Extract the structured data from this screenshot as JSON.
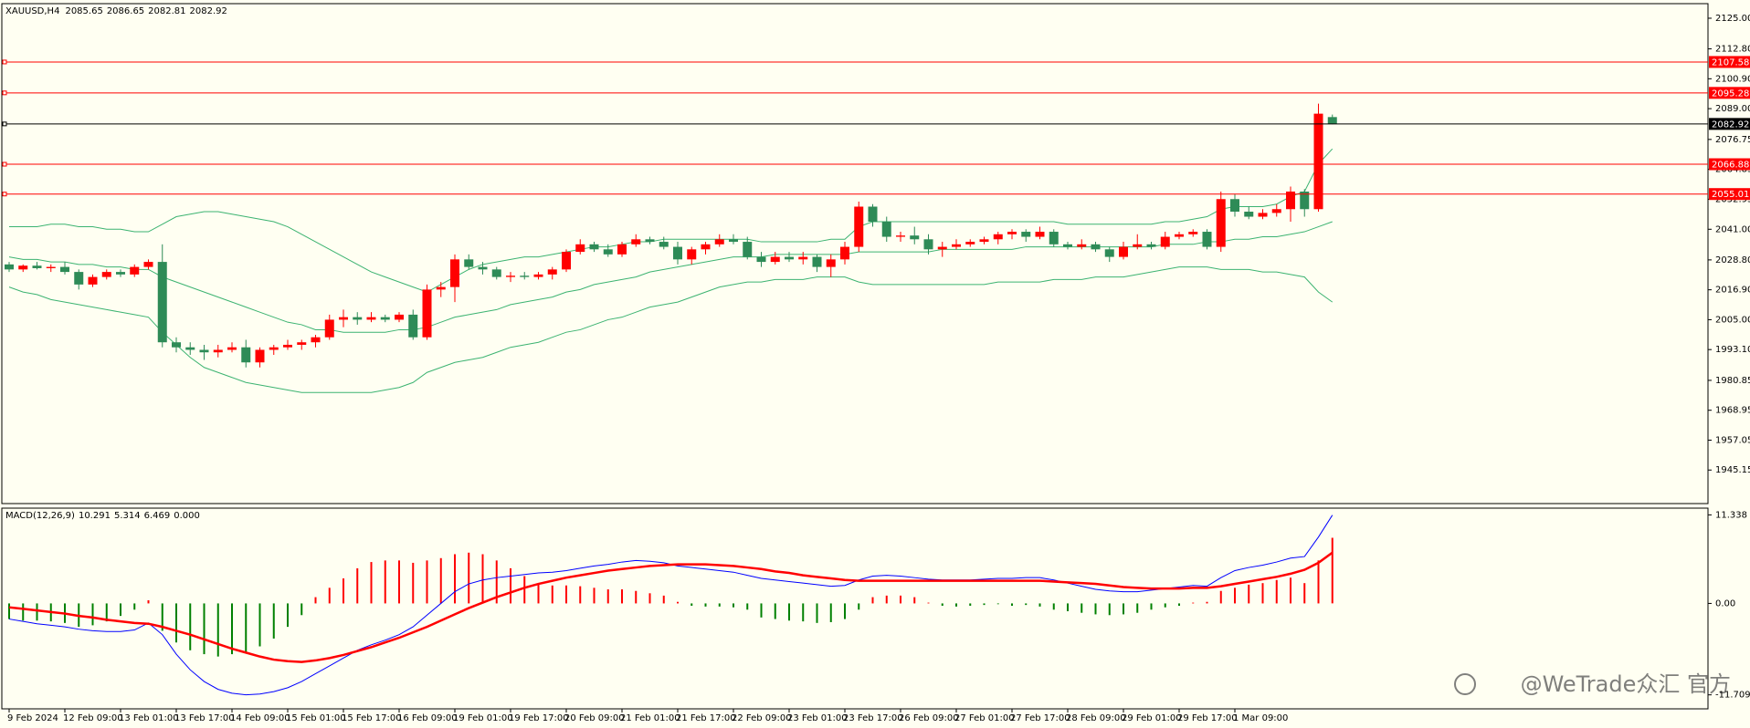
{
  "chart_data": [
    {
      "type": "candlestick",
      "title": "XAUUSD,H4",
      "readings": [
        2085.65,
        2086.65,
        2082.81,
        2082.92
      ],
      "categories": [
        "9 Feb 2024",
        null,
        null,
        null,
        "12 Feb 09:00",
        null,
        null,
        null,
        "13 Feb 01:00",
        null,
        null,
        null,
        "13 Feb 17:00",
        null,
        null,
        null,
        "14 Feb 09:00",
        null,
        null,
        null,
        "15 Feb 01:00",
        null,
        null,
        null,
        "15 Feb 17:00",
        null,
        null,
        null,
        "16 Feb 09:00",
        null,
        null,
        null,
        "19 Feb 01:00",
        null,
        null,
        null,
        "19 Feb 17:00",
        null,
        null,
        null,
        "20 Feb 09:00",
        null,
        null,
        null,
        "21 Feb 01:00",
        null,
        null,
        null,
        "21 Feb 17:00",
        null,
        null,
        null,
        "22 Feb 09:00",
        null,
        null,
        null,
        "23 Feb 01:00",
        null,
        null,
        null,
        "23 Feb 17:00",
        null,
        null,
        null,
        "26 Feb 09:00",
        null,
        null,
        null,
        "27 Feb 01:00",
        null,
        null,
        null,
        "27 Feb 17:00",
        null,
        null,
        null,
        "28 Feb 09:00",
        null,
        null,
        null,
        "29 Feb 01:00",
        null,
        null,
        null,
        "29 Feb 17:00",
        null,
        null,
        null,
        "1 Mar 09:00",
        null,
        null,
        null,
        null,
        null,
        null,
        null
      ],
      "open": [
        2027,
        2025,
        2026.5,
        2025.5,
        2026,
        2024,
        2019,
        2022,
        2024,
        2023,
        2026,
        2028,
        1996,
        1994,
        1993,
        1992,
        1993,
        1994,
        1988,
        1993,
        1994,
        1995,
        1996,
        1998,
        2005,
        2006,
        2005,
        2006,
        2005,
        2007,
        1998,
        2017,
        2018,
        2029,
        2026,
        2025,
        2022,
        2022.5,
        2022,
        2023,
        2025,
        2032,
        2035,
        2033,
        2031,
        2035,
        2037,
        2036,
        2034,
        2029,
        2033,
        2035,
        2037,
        2036,
        2030,
        2028,
        2030,
        2029,
        2030,
        2026,
        2029,
        2034,
        2050,
        2044,
        2038,
        2038.5,
        2037,
        2033,
        2034,
        2035,
        2036,
        2037,
        2039,
        2040,
        2038,
        2040,
        2035,
        2034,
        2035,
        2033,
        2030,
        2034,
        2035,
        2034,
        2038,
        2039,
        2040,
        2034,
        2053,
        2048,
        2046,
        2047.5,
        2049,
        2056,
        2049,
        2085.65
      ],
      "high": [
        2028,
        2027,
        2028,
        2027,
        2028,
        2025,
        2023,
        2025,
        2025,
        2027,
        2029,
        2035,
        1998,
        1996,
        1995,
        1995,
        1996,
        1997,
        1994,
        1995,
        1997,
        1997,
        1999,
        2007,
        2009,
        2008,
        2008,
        2007,
        2008,
        2009,
        2019,
        2020,
        2031,
        2031,
        2028,
        2026,
        2024,
        2024,
        2024,
        2026,
        2033,
        2037,
        2036,
        2035,
        2036,
        2039,
        2038,
        2038,
        2036,
        2034,
        2036,
        2039,
        2039,
        2038,
        2032,
        2032,
        2032,
        2032,
        2031,
        2031,
        2036,
        2052,
        2051,
        2046,
        2040,
        2042,
        2039,
        2036,
        2037,
        2037,
        2038,
        2040,
        2041,
        2041,
        2042,
        2041,
        2036,
        2037,
        2036,
        2034,
        2036,
        2039,
        2036,
        2040,
        2040,
        2041,
        2041,
        2056,
        2055,
        2050,
        2049,
        2051,
        2058,
        2057,
        2091,
        2086.65
      ],
      "low": [
        2024,
        2024,
        2025,
        2024,
        2023,
        2017,
        2018,
        2021,
        2022,
        2022,
        2025,
        1994,
        1992,
        1991,
        1989,
        1990,
        1992,
        1986,
        1986,
        1991,
        1993,
        1993,
        1994,
        1997,
        2002,
        2003,
        2004,
        2004,
        2004,
        1997,
        1997,
        2014,
        2012,
        2025,
        2023,
        2021,
        2020,
        2021,
        2021,
        2021,
        2024,
        2031,
        2032,
        2030,
        2030,
        2034,
        2035,
        2033,
        2027,
        2027,
        2031,
        2034,
        2035,
        2029,
        2026,
        2027,
        2028,
        2027,
        2024,
        2022,
        2027,
        2032,
        2042,
        2036,
        2036,
        2035,
        2031,
        2030,
        2033,
        2034,
        2035,
        2035,
        2037,
        2036,
        2037,
        2034,
        2033,
        2033,
        2032,
        2028,
        2029,
        2033,
        2033,
        2033,
        2037,
        2038,
        2033,
        2032,
        2046,
        2045,
        2045,
        2046,
        2044,
        2046,
        2048,
        2082.81
      ],
      "close": [
        2025,
        2026.5,
        2025.5,
        2026,
        2024,
        2019,
        2022,
        2024,
        2023,
        2026,
        2028,
        1996,
        1994,
        1993,
        1992,
        1993,
        1994,
        1988,
        1993,
        1994,
        1995,
        1996,
        1998,
        2005,
        2006,
        2005,
        2006,
        2005,
        2007,
        1998,
        2017,
        2018,
        2029,
        2026,
        2025,
        2022,
        2022.5,
        2022,
        2023,
        2025,
        2032,
        2035,
        2033,
        2031,
        2035,
        2037,
        2036,
        2034,
        2029,
        2033,
        2035,
        2037,
        2036,
        2030,
        2028,
        2030,
        2029,
        2030,
        2026,
        2029,
        2034,
        2050,
        2044,
        2038,
        2038.5,
        2037,
        2033,
        2034,
        2035,
        2036,
        2037,
        2039,
        2040,
        2038,
        2040,
        2035,
        2034,
        2035,
        2033,
        2030,
        2034,
        2035,
        2034,
        2038,
        2039,
        2040,
        2034,
        2053,
        2048,
        2046,
        2047.5,
        2049,
        2056,
        2049,
        2087,
        2082.92
      ],
      "up_color": "#ff0000",
      "down_color": "#2e8b57",
      "bands": [
        {
          "color": "#3cb371",
          "values": [
            2042,
            2042,
            2042,
            2043,
            2043,
            2042,
            2042,
            2041,
            2041,
            2040,
            2040,
            2043,
            2046,
            2047,
            2048,
            2048,
            2047,
            2046,
            2045,
            2044,
            2042,
            2039,
            2036,
            2033,
            2030,
            2027,
            2024,
            2022,
            2020,
            2018,
            2016,
            2019,
            2022,
            2025,
            2027,
            2028,
            2029,
            2030,
            2030,
            2031,
            2032,
            2033,
            2034,
            2034,
            2035,
            2036,
            2036,
            2037,
            2037,
            2037,
            2037,
            2037,
            2037,
            2037,
            2036,
            2036,
            2036,
            2036,
            2036,
            2037,
            2037,
            2042,
            2044,
            2044,
            2044,
            2044,
            2044,
            2044,
            2044,
            2044,
            2044,
            2044,
            2044,
            2044,
            2044,
            2044,
            2043,
            2043,
            2043,
            2043,
            2043,
            2043,
            2043,
            2044,
            2044,
            2045,
            2046,
            2049,
            2050,
            2050,
            2050,
            2051,
            2054,
            2056,
            2067,
            2073
          ]
        },
        {
          "color": "#3cb371",
          "values": [
            2030,
            2029,
            2029,
            2028,
            2028,
            2027,
            2027,
            2026,
            2026,
            2025,
            2025,
            2022,
            2020,
            2018,
            2016,
            2014,
            2012,
            2010,
            2008,
            2006,
            2004,
            2003,
            2001,
            2001,
            2000,
            2000,
            2000,
            2000,
            2001,
            2001,
            2002,
            2004,
            2006,
            2007,
            2008,
            2009,
            2011,
            2012,
            2013,
            2014,
            2016,
            2017,
            2019,
            2020,
            2021,
            2022,
            2024,
            2025,
            2026,
            2027,
            2028,
            2029,
            2030,
            2030,
            2030,
            2031,
            2031,
            2031,
            2031,
            2031,
            2031,
            2032,
            2032,
            2032,
            2032,
            2032,
            2032,
            2033,
            2033,
            2033,
            2033,
            2033,
            2033,
            2034,
            2034,
            2034,
            2034,
            2034,
            2034,
            2034,
            2034,
            2034,
            2034,
            2035,
            2035,
            2035,
            2036,
            2036,
            2037,
            2037,
            2038,
            2038,
            2039,
            2040,
            2042,
            2044
          ]
        },
        {
          "color": "#3cb371",
          "values": [
            2018,
            2016,
            2015,
            2013,
            2012,
            2011,
            2010,
            2009,
            2008,
            2007,
            2006,
            2000,
            1995,
            1990,
            1986,
            1984,
            1982,
            1980,
            1979,
            1978,
            1977,
            1976,
            1976,
            1976,
            1976,
            1976,
            1976,
            1977,
            1978,
            1980,
            1984,
            1986,
            1988,
            1989,
            1990,
            1992,
            1994,
            1995,
            1996,
            1998,
            2000,
            2001,
            2003,
            2005,
            2006,
            2008,
            2010,
            2011,
            2012,
            2014,
            2016,
            2018,
            2019,
            2020,
            2020,
            2021,
            2021,
            2021,
            2022,
            2022,
            2022,
            2020,
            2019,
            2019,
            2019,
            2019,
            2019,
            2019,
            2019,
            2019,
            2019,
            2020,
            2020,
            2020,
            2020,
            2021,
            2021,
            2021,
            2022,
            2022,
            2022,
            2023,
            2024,
            2025,
            2026,
            2026,
            2026,
            2025,
            2025,
            2025,
            2024,
            2024,
            2023,
            2022,
            2016,
            2012
          ]
        }
      ],
      "levels": [
        {
          "value": 2107.58,
          "color": "#ff0000"
        },
        {
          "value": 2095.28,
          "color": "#ff0000"
        },
        {
          "value": 2066.88,
          "color": "#ff0000"
        },
        {
          "value": 2055.01,
          "color": "#ff0000"
        }
      ],
      "last": {
        "value": 2082.92,
        "color": "#000000"
      },
      "ylim": [
        1931.8,
        2130.8
      ],
      "yticks": [
        {
          "value": 2125,
          "label": "2125.00"
        },
        {
          "value": 2112.8,
          "label": "2112.80"
        },
        {
          "value": 2100.9,
          "label": "2100.90"
        },
        {
          "value": 2089,
          "label": "2089.00"
        },
        2076.75,
        2064.85,
        2052.95,
        {
          "value": 2041,
          "label": "2041.00"
        },
        {
          "value": 2028.8,
          "label": "2028.80"
        },
        {
          "value": 2016.9,
          "label": "2016.90"
        },
        {
          "value": 2005,
          "label": "2005.00"
        },
        {
          "value": 1993.1,
          "label": "1993.10"
        },
        1980.85,
        1968.95,
        1957.05,
        1945.15
      ]
    },
    {
      "type": "macd",
      "title": "MACD(12,26,9)",
      "readings": [
        10.291,
        5.314,
        6.469,
        {
          "value": 0,
          "label": "0.000"
        }
      ],
      "histogram": {
        "values": [
          -2.0,
          -2.2,
          -2.2,
          -2.3,
          -2.5,
          -3.0,
          -2.8,
          -2.3,
          -1.6,
          -0.8,
          0.4,
          -3.5,
          -5.0,
          -6.0,
          -6.5,
          -6.8,
          -6.5,
          -6.3,
          -5.5,
          -4.5,
          -3.0,
          -1.5,
          0.8,
          2.0,
          3.2,
          4.5,
          5.3,
          5.5,
          5.5,
          5.2,
          5.5,
          5.8,
          6.3,
          6.5,
          6.3,
          5.5,
          4.5,
          3.5,
          2.5,
          2.3,
          2.3,
          2.2,
          2.0,
          1.8,
          1.8,
          1.6,
          1.3,
          1.0,
          0.2,
          -0.3,
          -0.4,
          -0.4,
          -0.5,
          -0.8,
          -1.8,
          -2.0,
          -2.2,
          -2.3,
          -2.5,
          -2.4,
          -2.0,
          -0.8,
          0.8,
          1.0,
          1.0,
          0.8,
          0.1,
          -0.3,
          -0.4,
          -0.3,
          -0.2,
          -0.1,
          -0.3,
          -0.2,
          -0.4,
          -0.8,
          -1.0,
          -1.2,
          -1.4,
          -1.5,
          -1.4,
          -1.2,
          -0.8,
          -0.5,
          -0.3,
          0.1,
          0.2,
          1.6,
          2.0,
          2.4,
          2.6,
          3.0,
          3.3,
          2.6,
          5.5,
          8.4
        ],
        "up_color": "#ff0000",
        "down_color": "#008000"
      },
      "series": [
        {
          "color": "#0000ff",
          "values": [
            -2.0,
            -2.3,
            -2.6,
            -2.8,
            -3.0,
            -3.3,
            -3.5,
            -3.6,
            -3.6,
            -3.4,
            -2.5,
            -4.0,
            -6.5,
            -8.5,
            -10.0,
            -11.0,
            -11.5,
            -11.7,
            -11.6,
            -11.3,
            -10.8,
            -10.0,
            -9.0,
            -8.0,
            -7.0,
            -6.0,
            -5.3,
            -4.7,
            -4.0,
            -3.0,
            -1.5,
            0.0,
            1.5,
            2.5,
            3.0,
            3.3,
            3.5,
            3.7,
            3.9,
            4.0,
            4.2,
            4.5,
            4.8,
            5.0,
            5.3,
            5.5,
            5.4,
            5.2,
            4.8,
            4.6,
            4.4,
            4.2,
            4.0,
            3.6,
            3.2,
            3.0,
            2.8,
            2.6,
            2.4,
            2.2,
            2.3,
            3.0,
            3.5,
            3.6,
            3.5,
            3.3,
            3.1,
            3.0,
            3.0,
            3.0,
            3.1,
            3.2,
            3.2,
            3.3,
            3.3,
            3.0,
            2.6,
            2.2,
            1.8,
            1.6,
            1.5,
            1.5,
            1.7,
            1.9,
            2.1,
            2.3,
            2.2,
            3.3,
            4.2,
            4.6,
            4.9,
            5.3,
            5.8,
            6.0,
            8.5,
            11.3
          ]
        },
        {
          "color": "#ff0000",
          "values": [
            -0.5,
            -0.7,
            -0.9,
            -1.1,
            -1.3,
            -1.6,
            -1.8,
            -2.1,
            -2.3,
            -2.5,
            -2.6,
            -3.0,
            -3.5,
            -4.0,
            -4.6,
            -5.2,
            -5.8,
            -6.3,
            -6.8,
            -7.2,
            -7.4,
            -7.5,
            -7.3,
            -7.0,
            -6.6,
            -6.1,
            -5.6,
            -5.0,
            -4.4,
            -3.7,
            -3.0,
            -2.2,
            -1.4,
            -0.6,
            0.1,
            0.8,
            1.4,
            2.0,
            2.5,
            2.9,
            3.3,
            3.6,
            3.9,
            4.2,
            4.4,
            4.6,
            4.8,
            4.9,
            5.0,
            5.0,
            5.0,
            4.9,
            4.8,
            4.6,
            4.4,
            4.1,
            3.9,
            3.6,
            3.4,
            3.2,
            3.0,
            2.9,
            2.9,
            2.9,
            2.9,
            2.9,
            2.9,
            2.9,
            2.9,
            2.9,
            2.9,
            2.9,
            2.9,
            2.9,
            2.9,
            2.8,
            2.7,
            2.6,
            2.5,
            2.3,
            2.1,
            2.0,
            1.9,
            1.9,
            1.9,
            2.0,
            2.0,
            2.2,
            2.5,
            2.8,
            3.1,
            3.4,
            3.8,
            4.3,
            5.2,
            6.5
          ]
        }
      ],
      "ylim": [
        -13.5,
        12.2
      ],
      "yticks": [
        11.338,
        {
          "value": 0,
          "label": "0.00"
        },
        -11.709
      ]
    }
  ],
  "watermark": "@WeTrade众汇 官方"
}
